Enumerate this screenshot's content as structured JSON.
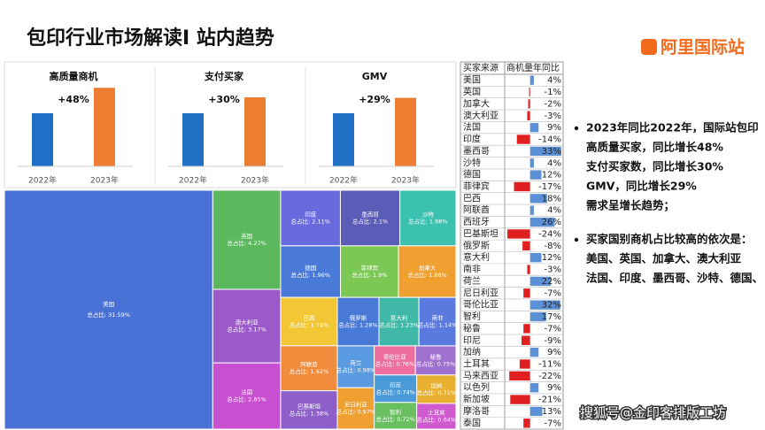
{
  "header": {
    "title": "包印行业市场解读I 站内趋势",
    "logo": "阿里国际站"
  },
  "chart_data": [
    {
      "type": "bar",
      "title": "高质量商机",
      "categories": [
        "2022年",
        "2023年"
      ],
      "values": [
        100,
        148
      ],
      "colors": [
        "#1f6fc5",
        "#ed7d31"
      ],
      "annotation": "+48%",
      "ylim": [
        0,
        150
      ]
    },
    {
      "type": "bar",
      "title": "支付买家",
      "categories": [
        "2022年",
        "2023年"
      ],
      "values": [
        100,
        130
      ],
      "colors": [
        "#1f6fc5",
        "#ed7d31"
      ],
      "annotation": "+30%",
      "ylim": [
        0,
        150
      ]
    },
    {
      "type": "bar",
      "title": "GMV",
      "categories": [
        "2022年",
        "2023年"
      ],
      "values": [
        100,
        129
      ],
      "colors": [
        "#1f6fc5",
        "#ed7d31"
      ],
      "annotation": "+29%",
      "ylim": [
        0,
        150
      ]
    },
    {
      "type": "treemap",
      "categories": [
        "美国",
        "英国",
        "澳大利亚",
        "法国",
        "印度",
        "墨西哥",
        "沙特",
        "德国",
        "菲律宾",
        "加拿大",
        "巴西",
        "阿联酋",
        "巴基斯坦",
        "俄罗斯",
        "意大利",
        "南非",
        "荷兰",
        "尼日利亚",
        "哥伦比亚",
        "秘鲁",
        "印尼",
        "智利",
        "加纳",
        "土耳其"
      ],
      "values": [
        31.59,
        4.27,
        3.17,
        2.85,
        2.11,
        2.1,
        1.98,
        1.96,
        1.9,
        1.88,
        1.74,
        1.62,
        1.38,
        1.28,
        1.23,
        1.14,
        0.98,
        0.97,
        0.76,
        0.75,
        0.74,
        0.72,
        0.71,
        0.64
      ],
      "value_labels": [
        "总占比: 31.59%",
        "总占比: 4.27%",
        "总占比: 3.17%",
        "总占比: 2.85%",
        "总占比: 2.11%",
        "总占比: 2.1%",
        "总占比: 1.98%",
        "总占比: 1.96%",
        "总占比: 1.9%",
        "总占比: 1.88%",
        "总占比: 1.74%",
        "总占比: 1.62%",
        "总占比: 1.38%",
        "总占比: 1.28%",
        "总占比: 1.23%",
        "总占比: 1.14%",
        "总占比: 0.98%",
        "总占比: 0.97%",
        "总占比: 0.76%",
        "总占比: 0.75%",
        "总占比: 0.74%",
        "总占比: 0.72%",
        "总占比: 0.71%",
        "总占比: 0.64%"
      ],
      "colors": [
        "#4a72d6",
        "#5cb85c",
        "#9b59c9",
        "#c84fd0",
        "#6a6adf",
        "#5b5bb8",
        "#3cc0b0",
        "#4a7ad8",
        "#7dc855",
        "#f0a030",
        "#f3c636",
        "#f08c3c",
        "#8e5fc8",
        "#4a7ad8",
        "#3fb8a8",
        "#5a7ae0",
        "#5a9ae0",
        "#f0a030",
        "#ee6e9e",
        "#a070d0",
        "#4a9ad8",
        "#6ac060",
        "#e8b030",
        "#d05ad0"
      ]
    },
    {
      "type": "table-bar",
      "columns": [
        "买家来源",
        "商机量年同比"
      ],
      "categories": [
        "美国",
        "英国",
        "加拿大",
        "澳大利亚",
        "法国",
        "印度",
        "墨西哥",
        "沙特",
        "德国",
        "菲律宾",
        "巴西",
        "阿联酋",
        "西班牙",
        "巴基斯坦",
        "俄罗斯",
        "意大利",
        "南非",
        "荷兰",
        "尼日利亚",
        "哥伦比亚",
        "智利",
        "秘鲁",
        "印尼",
        "加纳",
        "土耳其",
        "马来西亚",
        "以色列",
        "新加坡",
        "摩洛哥",
        "泰国"
      ],
      "values": [
        4,
        -1,
        -2,
        -3,
        9,
        -14,
        33,
        4,
        12,
        -17,
        18,
        4,
        26,
        -24,
        -8,
        12,
        -3,
        22,
        -7,
        32,
        17,
        -7,
        -9,
        9,
        -11,
        -22,
        9,
        -21,
        13,
        -7
      ],
      "value_labels": [
        "4%",
        "-1%",
        "-2%",
        "-3%",
        "9%",
        "-14%",
        "33%",
        "4%",
        "12%",
        "-17%",
        "18%",
        "4%",
        "26%",
        "-24%",
        "-8%",
        "12%",
        "-3%",
        "22%",
        "-7%",
        "32%",
        "17%",
        "-7%",
        "-9%",
        "9%",
        "-11%",
        "-22%",
        "9%",
        "-21%",
        "13%",
        "-7%"
      ],
      "xlim": [
        -25,
        35
      ],
      "positive_color": "#5b8fd6",
      "negative_color": "#e02020"
    }
  ],
  "notes": [
    [
      "2023年同比2022年，国际站包印",
      "高质量买家，同比增长48%",
      "支付买家数，同比增长30%",
      "GMV，同比增长29%",
      "需求呈增长趋势；"
    ],
    [
      "买家国别商机占比较高的依次是：",
      "美国、英国、加拿大、澳大利亚",
      "法国、印度、墨西哥、沙特、德国、"
    ]
  ],
  "footer": "搜狐号@金印客排版工坊"
}
